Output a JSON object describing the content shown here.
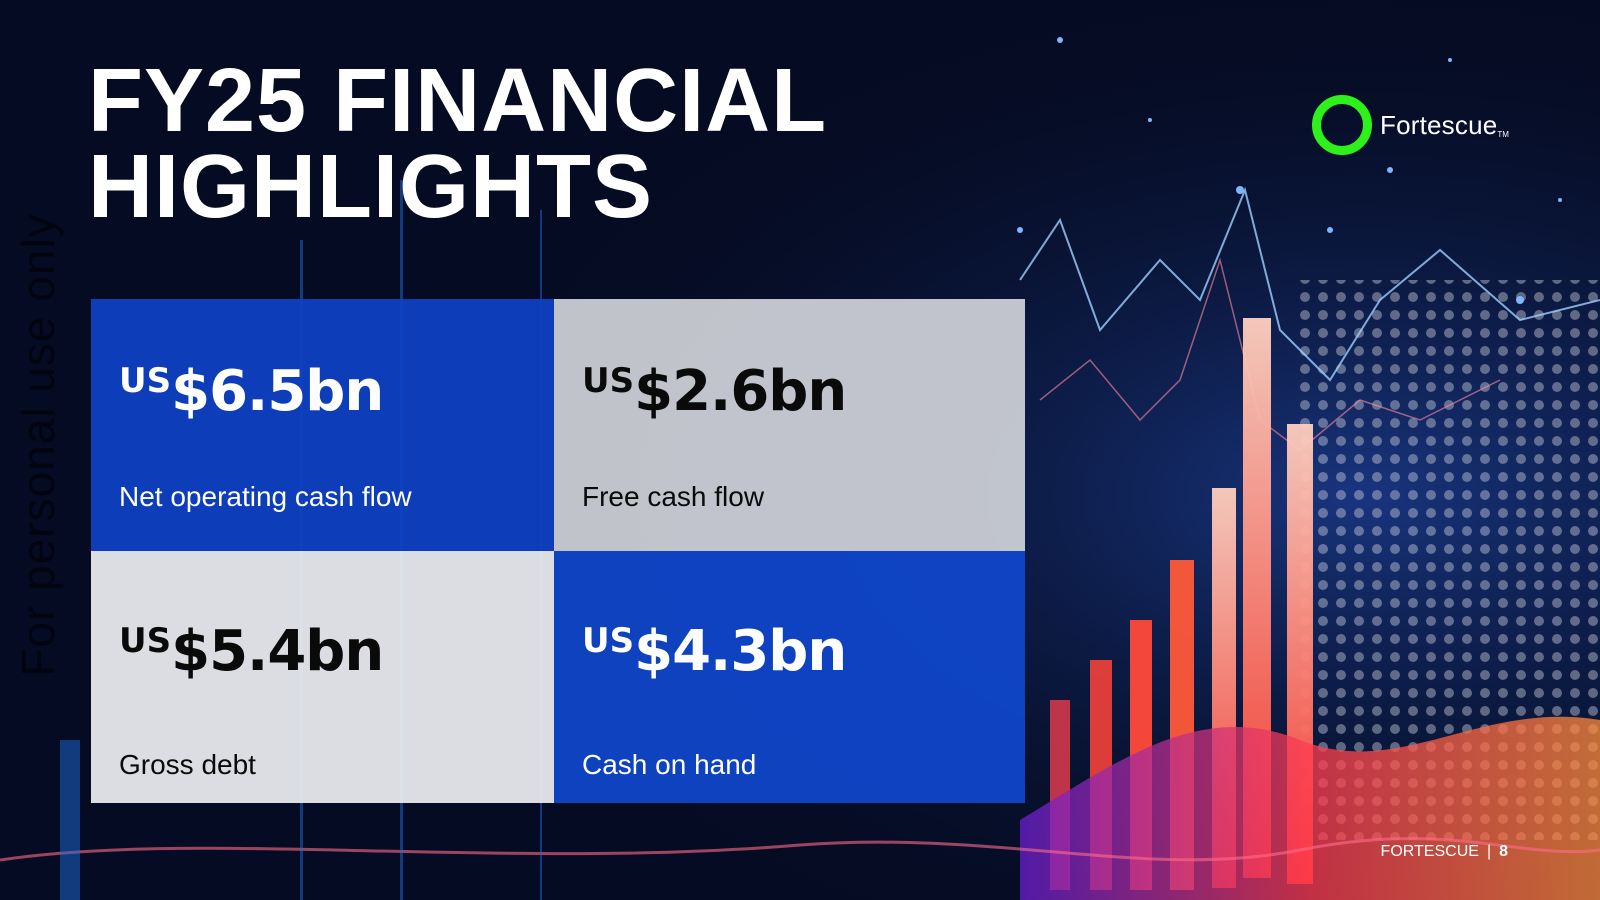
{
  "watermark": "For personal use only",
  "title": {
    "line1": "FY25 FINANCIAL",
    "line2": "HIGHLIGHTS"
  },
  "logo": {
    "text": "Fortescue",
    "tm": "TM",
    "ring_color": "#2EF11C"
  },
  "highlights": [
    {
      "currency": "US",
      "amount": "$6.5bn",
      "label": "Net operating cash flow"
    },
    {
      "currency": "US",
      "amount": "$2.6bn",
      "label": "Free cash flow"
    },
    {
      "currency": "US",
      "amount": "$5.4bn",
      "label": "Gross debt"
    },
    {
      "currency": "US",
      "amount": "$4.3bn",
      "label": "Cash on hand"
    }
  ],
  "footer": {
    "brand": "FORTESCUE",
    "separator": "|",
    "page": "8"
  },
  "colors": {
    "blue_tile": "#0E42C4",
    "grey_tile": "#D0D2D8",
    "light_tile": "#E8E9ED"
  }
}
